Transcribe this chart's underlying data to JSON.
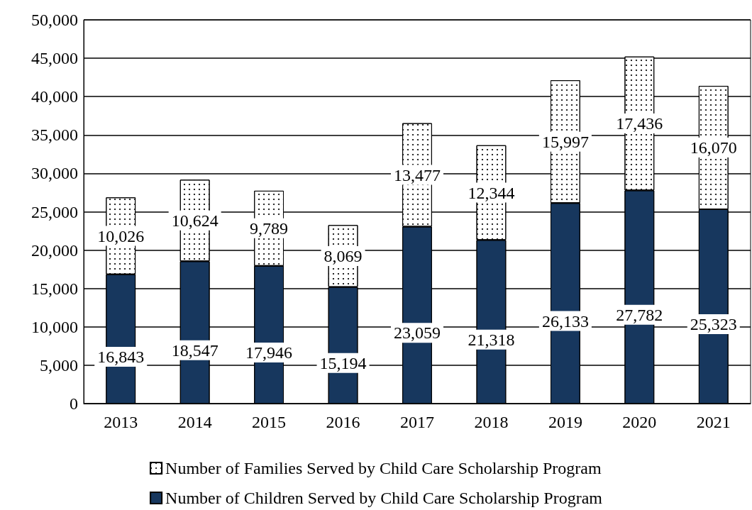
{
  "chart_data": {
    "type": "bar",
    "stacked": true,
    "categories": [
      "2013",
      "2014",
      "2015",
      "2016",
      "2017",
      "2018",
      "2019",
      "2020",
      "2021"
    ],
    "series": [
      {
        "name": "Number of Children Served by Child Care Scholarship Program",
        "color": "#17375e",
        "values": [
          16843,
          18547,
          17946,
          15194,
          23059,
          21318,
          26133,
          27782,
          25323
        ],
        "value_labels": [
          "16,843",
          "18,547",
          "17,946",
          "15,194",
          "23,059",
          "21,318",
          "26,133",
          "27,782",
          "25,323"
        ]
      },
      {
        "name": "Number of Families Served by Child Care Scholarship Program",
        "color": "#ffffff",
        "values": [
          10026,
          10624,
          9789,
          8069,
          13477,
          12344,
          15997,
          17436,
          16070
        ],
        "value_labels": [
          "10,026",
          "10,624",
          "9,789",
          "8,069",
          "13,477",
          "12,344",
          "15,997",
          "17,436",
          "16,070"
        ]
      }
    ],
    "ylim": [
      0,
      50000
    ],
    "yticks": [
      {
        "value": 0,
        "label": "0"
      },
      {
        "value": 5000,
        "label": "5,000"
      },
      {
        "value": 10000,
        "label": "10,000"
      },
      {
        "value": 15000,
        "label": "15,000"
      },
      {
        "value": 20000,
        "label": "20,000"
      },
      {
        "value": 25000,
        "label": "25,000"
      },
      {
        "value": 30000,
        "label": "30,000"
      },
      {
        "value": 35000,
        "label": "35,000"
      },
      {
        "value": 40000,
        "label": "40,000"
      },
      {
        "value": 45000,
        "label": "45,000"
      },
      {
        "value": 50000,
        "label": "50,000"
      }
    ],
    "grid": "y",
    "legend": "bottom"
  }
}
